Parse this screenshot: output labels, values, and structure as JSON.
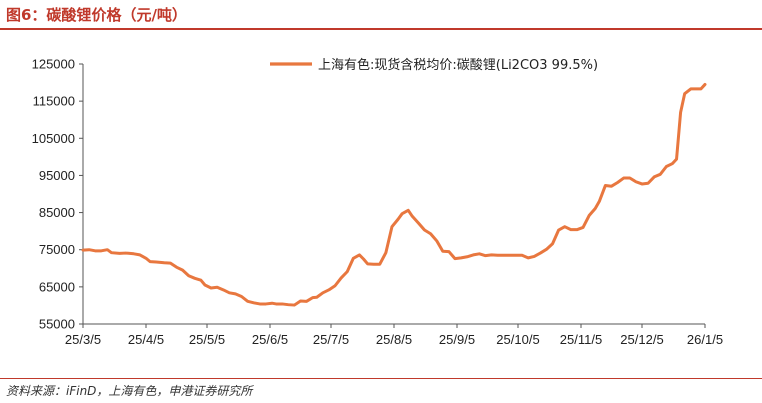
{
  "header": {
    "title": "图6：碳酸锂价格（元/吨）"
  },
  "footer": {
    "source": "资料来源：iFinD，上海有色，申港证券研究所"
  },
  "colors": {
    "accent": "#c0392b",
    "series": "#e8773f"
  },
  "chart_data": {
    "type": "line",
    "title": "",
    "xlabel": "",
    "ylabel": "",
    "ylim": [
      55000,
      125000
    ],
    "yticks": [
      55000,
      65000,
      75000,
      85000,
      95000,
      105000,
      115000,
      125000
    ],
    "xticks": [
      "25/3/5",
      "25/4/5",
      "25/5/5",
      "25/6/5",
      "25/7/5",
      "25/8/5",
      "25/9/5",
      "25/10/5",
      "25/11/5",
      "25/12/5",
      "26/1/5"
    ],
    "xlim": [
      "2025-03-05",
      "2026-01-05"
    ],
    "grid": false,
    "legend": "top-right",
    "series": [
      {
        "name": "上海有色:现货含税均价:碳酸锂(Li2CO3 99.5%)",
        "points": [
          [
            "2025-03-05",
            74900
          ],
          [
            "2025-03-08",
            75000
          ],
          [
            "2025-03-11",
            74700
          ],
          [
            "2025-03-14",
            74700
          ],
          [
            "2025-03-17",
            75000
          ],
          [
            "2025-03-19",
            74200
          ],
          [
            "2025-03-23",
            74000
          ],
          [
            "2025-03-26",
            74100
          ],
          [
            "2025-03-30",
            73900
          ],
          [
            "2025-04-02",
            73600
          ],
          [
            "2025-04-05",
            72700
          ],
          [
            "2025-04-07",
            71800
          ],
          [
            "2025-04-10",
            71700
          ],
          [
            "2025-04-14",
            71500
          ],
          [
            "2025-04-17",
            71400
          ],
          [
            "2025-04-20",
            70300
          ],
          [
            "2025-04-23",
            69500
          ],
          [
            "2025-04-26",
            68000
          ],
          [
            "2025-04-29",
            67300
          ],
          [
            "2025-05-02",
            66800
          ],
          [
            "2025-05-04",
            65500
          ],
          [
            "2025-05-07",
            64700
          ],
          [
            "2025-05-10",
            64900
          ],
          [
            "2025-05-13",
            64200
          ],
          [
            "2025-05-16",
            63400
          ],
          [
            "2025-05-19",
            63100
          ],
          [
            "2025-05-22",
            62400
          ],
          [
            "2025-05-25",
            61100
          ],
          [
            "2025-05-28",
            60700
          ],
          [
            "2025-05-31",
            60400
          ],
          [
            "2025-06-03",
            60400
          ],
          [
            "2025-06-06",
            60600
          ],
          [
            "2025-06-08",
            60400
          ],
          [
            "2025-06-11",
            60400
          ],
          [
            "2025-06-14",
            60200
          ],
          [
            "2025-06-17",
            60100
          ],
          [
            "2025-06-20",
            61200
          ],
          [
            "2025-06-23",
            61100
          ],
          [
            "2025-06-26",
            62100
          ],
          [
            "2025-06-28",
            62200
          ],
          [
            "2025-07-01",
            63400
          ],
          [
            "2025-07-04",
            64200
          ],
          [
            "2025-07-07",
            65300
          ],
          [
            "2025-07-10",
            67400
          ],
          [
            "2025-07-13",
            69100
          ],
          [
            "2025-07-16",
            72700
          ],
          [
            "2025-07-19",
            73600
          ],
          [
            "2025-07-21",
            72500
          ],
          [
            "2025-07-23",
            71200
          ],
          [
            "2025-07-26",
            71100
          ],
          [
            "2025-07-29",
            71100
          ],
          [
            "2025-08-01",
            74200
          ],
          [
            "2025-08-04",
            81200
          ],
          [
            "2025-08-07",
            83200
          ],
          [
            "2025-08-09",
            84700
          ],
          [
            "2025-08-12",
            85600
          ],
          [
            "2025-08-14",
            84000
          ],
          [
            "2025-08-17",
            82200
          ],
          [
            "2025-08-20",
            80300
          ],
          [
            "2025-08-23",
            79300
          ],
          [
            "2025-08-26",
            77400
          ],
          [
            "2025-08-29",
            74600
          ],
          [
            "2025-09-01",
            74500
          ],
          [
            "2025-09-04",
            72600
          ],
          [
            "2025-09-07",
            72800
          ],
          [
            "2025-09-10",
            73100
          ],
          [
            "2025-09-13",
            73600
          ],
          [
            "2025-09-16",
            73900
          ],
          [
            "2025-09-19",
            73400
          ],
          [
            "2025-09-22",
            73600
          ],
          [
            "2025-09-25",
            73500
          ],
          [
            "2025-09-28",
            73500
          ],
          [
            "2025-10-01",
            73500
          ],
          [
            "2025-10-04",
            73500
          ],
          [
            "2025-10-07",
            73500
          ],
          [
            "2025-10-10",
            72800
          ],
          [
            "2025-10-13",
            73200
          ],
          [
            "2025-10-16",
            74100
          ],
          [
            "2025-10-19",
            75100
          ],
          [
            "2025-10-22",
            76600
          ],
          [
            "2025-10-25",
            80300
          ],
          [
            "2025-10-28",
            81200
          ],
          [
            "2025-10-31",
            80400
          ],
          [
            "2025-11-03",
            80400
          ],
          [
            "2025-11-06",
            81000
          ],
          [
            "2025-11-09",
            84200
          ],
          [
            "2025-11-12",
            86100
          ],
          [
            "2025-11-14",
            88000
          ],
          [
            "2025-11-17",
            92300
          ],
          [
            "2025-11-20",
            92100
          ],
          [
            "2025-11-23",
            93100
          ],
          [
            "2025-11-26",
            94300
          ],
          [
            "2025-11-29",
            94300
          ],
          [
            "2025-12-02",
            93300
          ],
          [
            "2025-12-05",
            92700
          ],
          [
            "2025-12-08",
            92900
          ],
          [
            "2025-12-11",
            94600
          ],
          [
            "2025-12-14",
            95300
          ],
          [
            "2025-12-17",
            97400
          ],
          [
            "2025-12-20",
            98200
          ],
          [
            "2025-12-22",
            99400
          ],
          [
            "2025-12-24",
            112000
          ],
          [
            "2025-12-26",
            117000
          ],
          [
            "2025-12-29",
            118300
          ],
          [
            "2026-01-01",
            118300
          ],
          [
            "2026-01-03",
            118300
          ],
          [
            "2026-01-05",
            119500
          ]
        ]
      }
    ]
  }
}
